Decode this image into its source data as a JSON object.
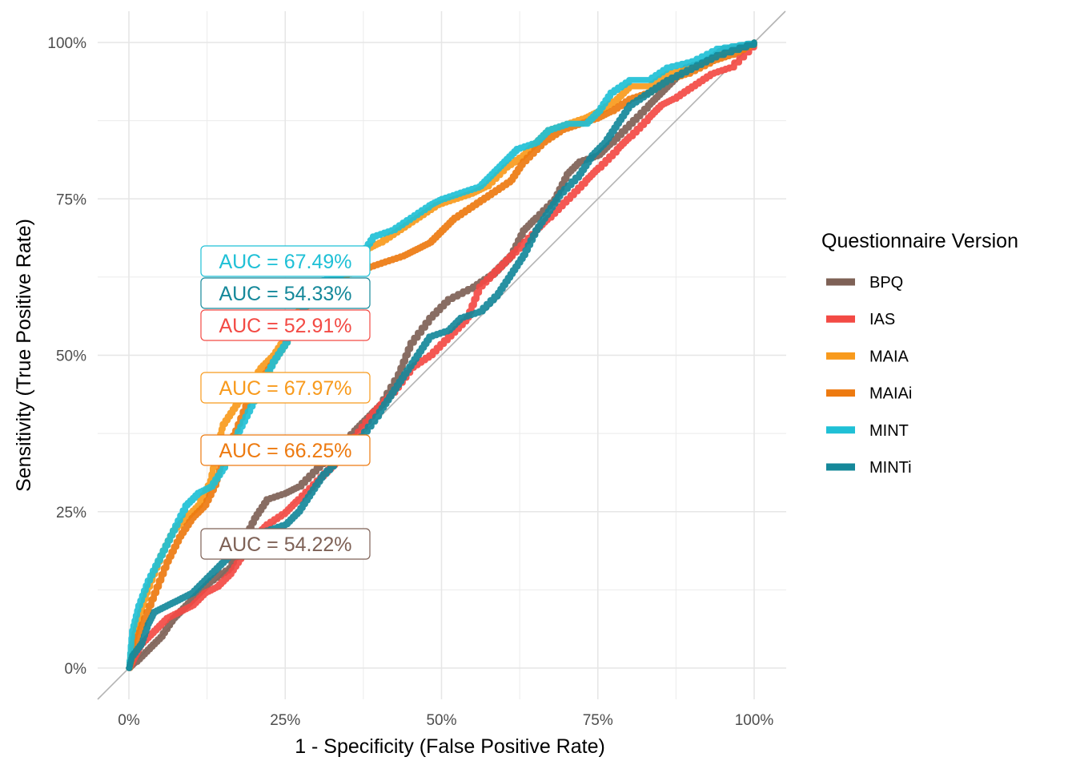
{
  "chart_data": {
    "type": "line",
    "xlabel": "1 - Specificity (False Positive Rate)",
    "ylabel": "Sensitivity (True Positive Rate)",
    "xlim": [
      0,
      1
    ],
    "ylim": [
      0,
      1
    ],
    "x_ticks": [
      {
        "value": 0,
        "label": "0%"
      },
      {
        "value": 0.25,
        "label": "25%"
      },
      {
        "value": 0.5,
        "label": "50%"
      },
      {
        "value": 0.75,
        "label": "75%"
      },
      {
        "value": 1,
        "label": "100%"
      }
    ],
    "y_ticks": [
      {
        "value": 0,
        "label": "0%"
      },
      {
        "value": 0.25,
        "label": "25%"
      },
      {
        "value": 0.5,
        "label": "50%"
      },
      {
        "value": 0.75,
        "label": "75%"
      },
      {
        "value": 1,
        "label": "100%"
      }
    ],
    "grid": true,
    "diagonal_reference": true,
    "legend": {
      "title": "Questionnaire Version",
      "placement": "right"
    },
    "series": [
      {
        "name": "BPQ",
        "color": "#7e6156",
        "auc_label": "AUC = 54.22%",
        "points": [
          [
            0,
            0
          ],
          [
            0.01,
            0.01
          ],
          [
            0.03,
            0.03
          ],
          [
            0.05,
            0.05
          ],
          [
            0.07,
            0.08
          ],
          [
            0.09,
            0.1
          ],
          [
            0.11,
            0.12
          ],
          [
            0.13,
            0.14
          ],
          [
            0.16,
            0.16
          ],
          [
            0.18,
            0.2
          ],
          [
            0.2,
            0.24
          ],
          [
            0.22,
            0.27
          ],
          [
            0.25,
            0.28
          ],
          [
            0.27,
            0.29
          ],
          [
            0.3,
            0.32
          ],
          [
            0.33,
            0.35
          ],
          [
            0.36,
            0.38
          ],
          [
            0.38,
            0.4
          ],
          [
            0.4,
            0.42
          ],
          [
            0.43,
            0.47
          ],
          [
            0.45,
            0.52
          ],
          [
            0.48,
            0.56
          ],
          [
            0.51,
            0.59
          ],
          [
            0.55,
            0.61
          ],
          [
            0.58,
            0.63
          ],
          [
            0.61,
            0.66
          ],
          [
            0.63,
            0.7
          ],
          [
            0.65,
            0.72
          ],
          [
            0.68,
            0.75
          ],
          [
            0.7,
            0.79
          ],
          [
            0.72,
            0.81
          ],
          [
            0.75,
            0.82
          ],
          [
            0.77,
            0.84
          ],
          [
            0.8,
            0.87
          ],
          [
            0.83,
            0.9
          ],
          [
            0.85,
            0.92
          ],
          [
            0.87,
            0.94
          ],
          [
            0.89,
            0.96
          ],
          [
            0.92,
            0.97
          ],
          [
            0.95,
            0.99
          ],
          [
            1,
            1
          ]
        ]
      },
      {
        "name": "IAS",
        "color": "#f34a44",
        "auc_label": "AUC = 52.91%",
        "points": [
          [
            0,
            0
          ],
          [
            0.01,
            0.02
          ],
          [
            0.02,
            0.04
          ],
          [
            0.04,
            0.06
          ],
          [
            0.06,
            0.08
          ],
          [
            0.08,
            0.09
          ],
          [
            0.1,
            0.1
          ],
          [
            0.12,
            0.12
          ],
          [
            0.14,
            0.13
          ],
          [
            0.16,
            0.15
          ],
          [
            0.18,
            0.18
          ],
          [
            0.2,
            0.21
          ],
          [
            0.22,
            0.23
          ],
          [
            0.25,
            0.25
          ],
          [
            0.27,
            0.27
          ],
          [
            0.3,
            0.3
          ],
          [
            0.33,
            0.33
          ],
          [
            0.36,
            0.37
          ],
          [
            0.39,
            0.41
          ],
          [
            0.42,
            0.44
          ],
          [
            0.45,
            0.48
          ],
          [
            0.48,
            0.5
          ],
          [
            0.51,
            0.53
          ],
          [
            0.54,
            0.56
          ],
          [
            0.56,
            0.61
          ],
          [
            0.59,
            0.64
          ],
          [
            0.62,
            0.67
          ],
          [
            0.65,
            0.7
          ],
          [
            0.67,
            0.72
          ],
          [
            0.7,
            0.75
          ],
          [
            0.73,
            0.78
          ],
          [
            0.75,
            0.8
          ],
          [
            0.78,
            0.83
          ],
          [
            0.8,
            0.85
          ],
          [
            0.83,
            0.88
          ],
          [
            0.85,
            0.9
          ],
          [
            0.87,
            0.91
          ],
          [
            0.9,
            0.93
          ],
          [
            0.93,
            0.95
          ],
          [
            0.96,
            0.96
          ],
          [
            1,
            1
          ]
        ]
      },
      {
        "name": "MAIA",
        "color": "#f89a1c",
        "auc_label": "AUC = 67.97%",
        "points": [
          [
            0,
            0
          ],
          [
            0.005,
            0.04
          ],
          [
            0.015,
            0.08
          ],
          [
            0.03,
            0.13
          ],
          [
            0.05,
            0.18
          ],
          [
            0.07,
            0.22
          ],
          [
            0.09,
            0.24
          ],
          [
            0.11,
            0.26
          ],
          [
            0.13,
            0.3
          ],
          [
            0.14,
            0.35
          ],
          [
            0.15,
            0.39
          ],
          [
            0.17,
            0.42
          ],
          [
            0.19,
            0.45
          ],
          [
            0.21,
            0.48
          ],
          [
            0.23,
            0.5
          ],
          [
            0.25,
            0.53
          ],
          [
            0.27,
            0.57
          ],
          [
            0.3,
            0.6
          ],
          [
            0.33,
            0.63
          ],
          [
            0.36,
            0.65
          ],
          [
            0.38,
            0.67
          ],
          [
            0.4,
            0.68
          ],
          [
            0.43,
            0.7
          ],
          [
            0.46,
            0.72
          ],
          [
            0.49,
            0.74
          ],
          [
            0.52,
            0.75
          ],
          [
            0.55,
            0.76
          ],
          [
            0.57,
            0.77
          ],
          [
            0.6,
            0.8
          ],
          [
            0.63,
            0.82
          ],
          [
            0.65,
            0.84
          ],
          [
            0.67,
            0.86
          ],
          [
            0.7,
            0.87
          ],
          [
            0.73,
            0.88
          ],
          [
            0.75,
            0.89
          ],
          [
            0.78,
            0.91
          ],
          [
            0.8,
            0.93
          ],
          [
            0.83,
            0.93
          ],
          [
            0.86,
            0.95
          ],
          [
            0.9,
            0.96
          ],
          [
            0.94,
            0.98
          ],
          [
            1,
            1
          ]
        ]
      },
      {
        "name": "MAIAi",
        "color": "#ed7a10",
        "auc_label": "AUC = 66.25%",
        "points": [
          [
            0,
            0
          ],
          [
            0.01,
            0.04
          ],
          [
            0.02,
            0.07
          ],
          [
            0.04,
            0.12
          ],
          [
            0.06,
            0.17
          ],
          [
            0.08,
            0.21
          ],
          [
            0.1,
            0.24
          ],
          [
            0.12,
            0.26
          ],
          [
            0.14,
            0.3
          ],
          [
            0.15,
            0.34
          ],
          [
            0.17,
            0.38
          ],
          [
            0.19,
            0.43
          ],
          [
            0.21,
            0.46
          ],
          [
            0.23,
            0.49
          ],
          [
            0.25,
            0.52
          ],
          [
            0.27,
            0.56
          ],
          [
            0.29,
            0.59
          ],
          [
            0.32,
            0.62
          ],
          [
            0.35,
            0.63
          ],
          [
            0.38,
            0.64
          ],
          [
            0.41,
            0.65
          ],
          [
            0.44,
            0.66
          ],
          [
            0.46,
            0.67
          ],
          [
            0.48,
            0.68
          ],
          [
            0.5,
            0.7
          ],
          [
            0.52,
            0.72
          ],
          [
            0.55,
            0.74
          ],
          [
            0.58,
            0.76
          ],
          [
            0.61,
            0.78
          ],
          [
            0.63,
            0.81
          ],
          [
            0.66,
            0.84
          ],
          [
            0.69,
            0.86
          ],
          [
            0.72,
            0.87
          ],
          [
            0.75,
            0.88
          ],
          [
            0.77,
            0.89
          ],
          [
            0.8,
            0.91
          ],
          [
            0.83,
            0.92
          ],
          [
            0.86,
            0.94
          ],
          [
            0.89,
            0.95
          ],
          [
            0.93,
            0.97
          ],
          [
            0.96,
            0.98
          ],
          [
            1,
            1
          ]
        ]
      },
      {
        "name": "MINT",
        "color": "#1fc0d6",
        "auc_label": "AUC = 67.49%",
        "points": [
          [
            0,
            0
          ],
          [
            0.005,
            0.06
          ],
          [
            0.015,
            0.1
          ],
          [
            0.03,
            0.14
          ],
          [
            0.05,
            0.18
          ],
          [
            0.07,
            0.22
          ],
          [
            0.09,
            0.26
          ],
          [
            0.11,
            0.28
          ],
          [
            0.13,
            0.29
          ],
          [
            0.15,
            0.32
          ],
          [
            0.17,
            0.37
          ],
          [
            0.19,
            0.41
          ],
          [
            0.21,
            0.45
          ],
          [
            0.23,
            0.49
          ],
          [
            0.25,
            0.52
          ],
          [
            0.27,
            0.56
          ],
          [
            0.29,
            0.6
          ],
          [
            0.31,
            0.62
          ],
          [
            0.34,
            0.63
          ],
          [
            0.37,
            0.66
          ],
          [
            0.39,
            0.69
          ],
          [
            0.42,
            0.7
          ],
          [
            0.45,
            0.72
          ],
          [
            0.48,
            0.74
          ],
          [
            0.5,
            0.75
          ],
          [
            0.53,
            0.76
          ],
          [
            0.56,
            0.77
          ],
          [
            0.58,
            0.79
          ],
          [
            0.6,
            0.81
          ],
          [
            0.62,
            0.83
          ],
          [
            0.65,
            0.84
          ],
          [
            0.67,
            0.86
          ],
          [
            0.7,
            0.87
          ],
          [
            0.73,
            0.87
          ],
          [
            0.75,
            0.89
          ],
          [
            0.77,
            0.92
          ],
          [
            0.8,
            0.94
          ],
          [
            0.83,
            0.94
          ],
          [
            0.86,
            0.96
          ],
          [
            0.9,
            0.97
          ],
          [
            0.94,
            0.99
          ],
          [
            1,
            1
          ]
        ]
      },
      {
        "name": "MINTi",
        "color": "#15889a",
        "auc_label": "AUC = 54.33%",
        "points": [
          [
            0,
            0
          ],
          [
            0.005,
            0.02
          ],
          [
            0.02,
            0.04
          ],
          [
            0.03,
            0.07
          ],
          [
            0.04,
            0.09
          ],
          [
            0.06,
            0.1
          ],
          [
            0.08,
            0.11
          ],
          [
            0.1,
            0.12
          ],
          [
            0.12,
            0.14
          ],
          [
            0.14,
            0.16
          ],
          [
            0.16,
            0.18
          ],
          [
            0.18,
            0.2
          ],
          [
            0.2,
            0.21
          ],
          [
            0.22,
            0.22
          ],
          [
            0.25,
            0.23
          ],
          [
            0.27,
            0.25
          ],
          [
            0.29,
            0.28
          ],
          [
            0.31,
            0.31
          ],
          [
            0.34,
            0.34
          ],
          [
            0.37,
            0.37
          ],
          [
            0.4,
            0.41
          ],
          [
            0.42,
            0.44
          ],
          [
            0.44,
            0.47
          ],
          [
            0.46,
            0.5
          ],
          [
            0.48,
            0.53
          ],
          [
            0.51,
            0.54
          ],
          [
            0.53,
            0.56
          ],
          [
            0.56,
            0.57
          ],
          [
            0.59,
            0.6
          ],
          [
            0.61,
            0.63
          ],
          [
            0.63,
            0.66
          ],
          [
            0.65,
            0.7
          ],
          [
            0.67,
            0.73
          ],
          [
            0.69,
            0.76
          ],
          [
            0.72,
            0.79
          ],
          [
            0.74,
            0.82
          ],
          [
            0.76,
            0.84
          ],
          [
            0.78,
            0.87
          ],
          [
            0.8,
            0.9
          ],
          [
            0.83,
            0.92
          ],
          [
            0.86,
            0.94
          ],
          [
            0.9,
            0.96
          ],
          [
            0.94,
            0.98
          ],
          [
            1,
            1
          ]
        ]
      }
    ],
    "auc_box_order": [
      "MINT",
      "MINTi",
      "IAS",
      "MAIA",
      "MAIAi",
      "BPQ"
    ]
  }
}
